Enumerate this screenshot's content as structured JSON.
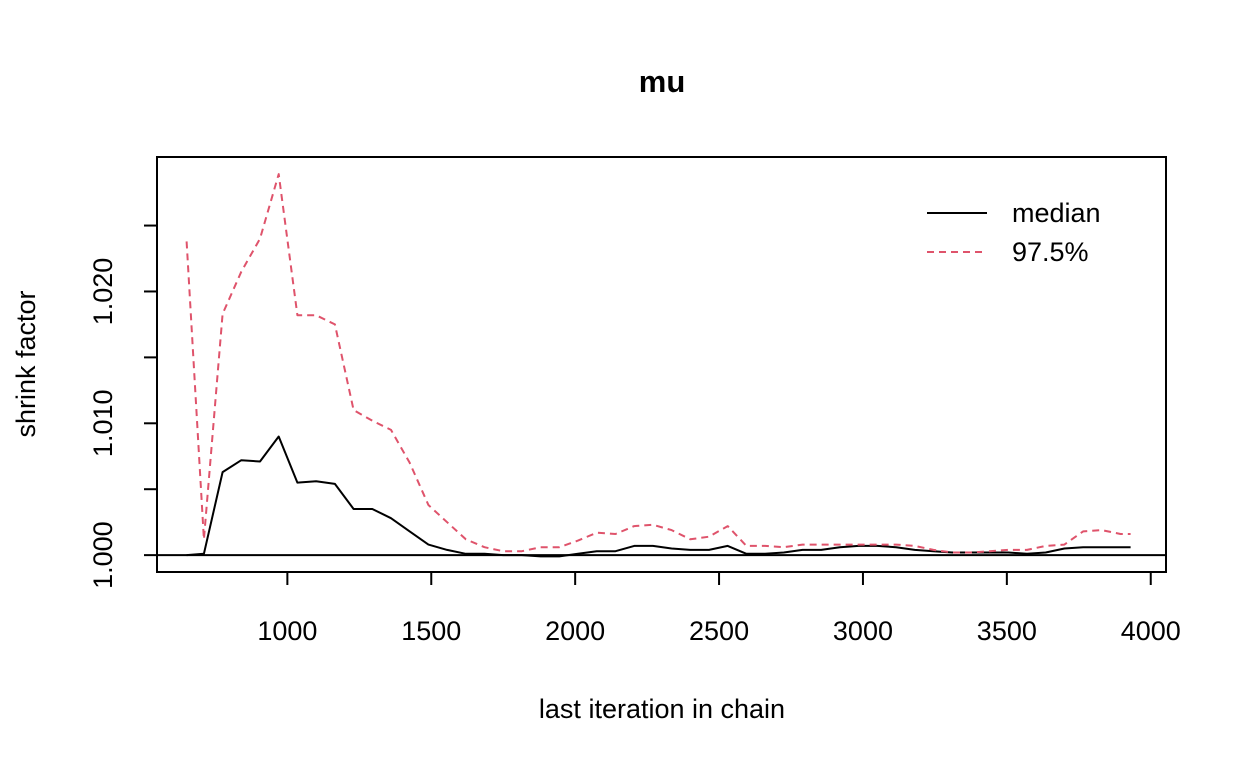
{
  "chart_data": {
    "type": "line",
    "title": "mu",
    "xlabel": "last iteration in chain",
    "ylabel": "shrink factor",
    "xlim": [
      547,
      4053
    ],
    "ylim": [
      0.99872,
      1.0302
    ],
    "x_ticks": [
      1000,
      1500,
      2000,
      2500,
      3000,
      3500,
      4000
    ],
    "x_tick_labels": [
      "1000",
      "1500",
      "2000",
      "2500",
      "3000",
      "3500",
      "4000"
    ],
    "y_ticks": [
      1.0,
      1.005,
      1.01,
      1.015,
      1.02,
      1.025
    ],
    "y_tick_labels": [
      "1.000",
      "1.010",
      "1.020"
    ],
    "y_tick_label_values": [
      1.0,
      1.01,
      1.02
    ],
    "reference_line": 1.0,
    "legend_position": "top-right",
    "series": [
      {
        "name": "median",
        "color": "#000000",
        "dash": "solid",
        "x": [
          650,
          710,
          775,
          840,
          905,
          970,
          1035,
          1100,
          1165,
          1230,
          1295,
          1360,
          1425,
          1490,
          1555,
          1620,
          1685,
          1750,
          1815,
          1880,
          1945,
          2010,
          2075,
          2140,
          2205,
          2270,
          2335,
          2400,
          2465,
          2530,
          2595,
          2660,
          2725,
          2790,
          2855,
          2920,
          2985,
          3050,
          3115,
          3180,
          3245,
          3310,
          3375,
          3440,
          3505,
          3570,
          3635,
          3700,
          3765,
          3830,
          3895,
          3930
        ],
        "values": [
          1.0,
          1.0001,
          1.0063,
          1.0072,
          1.0071,
          1.009,
          1.0055,
          1.0056,
          1.0054,
          1.0035,
          1.0035,
          1.0028,
          1.0018,
          1.0008,
          1.0004,
          1.0001,
          1.0001,
          1.0,
          1.0,
          0.9999,
          0.9999,
          1.0001,
          1.0003,
          1.0003,
          1.0007,
          1.0007,
          1.0005,
          1.0004,
          1.0004,
          1.0007,
          1.0001,
          1.0001,
          1.0002,
          1.0004,
          1.0004,
          1.0006,
          1.0007,
          1.0007,
          1.0006,
          1.0004,
          1.0003,
          1.0002,
          1.0002,
          1.0002,
          1.0002,
          1.0001,
          1.0002,
          1.0005,
          1.0006,
          1.0006,
          1.0006,
          1.0006
        ]
      },
      {
        "name": "97.5%",
        "color": "#DF536B",
        "dash": "dashed",
        "x": [
          650,
          710,
          775,
          840,
          905,
          970,
          1035,
          1100,
          1165,
          1230,
          1295,
          1360,
          1425,
          1490,
          1555,
          1620,
          1685,
          1750,
          1815,
          1880,
          1945,
          2010,
          2075,
          2140,
          2205,
          2270,
          2335,
          2400,
          2465,
          2530,
          2595,
          2660,
          2725,
          2790,
          2855,
          2920,
          2985,
          3050,
          3115,
          3180,
          3245,
          3310,
          3375,
          3440,
          3505,
          3570,
          3635,
          3700,
          3765,
          3830,
          3895,
          3930
        ],
        "values": [
          1.0238,
          1.0012,
          1.0183,
          1.0215,
          1.024,
          1.0289,
          1.0182,
          1.0182,
          1.0175,
          1.011,
          1.0102,
          1.0095,
          1.007,
          1.0038,
          1.0025,
          1.0012,
          1.0006,
          1.0003,
          1.0003,
          1.0006,
          1.0006,
          1.0011,
          1.0017,
          1.0016,
          1.0022,
          1.0023,
          1.0019,
          1.0012,
          1.0014,
          1.0022,
          1.0007,
          1.0007,
          1.0006,
          1.0008,
          1.0008,
          1.0008,
          1.0008,
          1.0008,
          1.0008,
          1.0007,
          1.0004,
          1.0002,
          1.0002,
          1.0003,
          1.0004,
          1.0004,
          1.0007,
          1.0008,
          1.0018,
          1.0019,
          1.0016,
          1.0016
        ]
      }
    ]
  }
}
